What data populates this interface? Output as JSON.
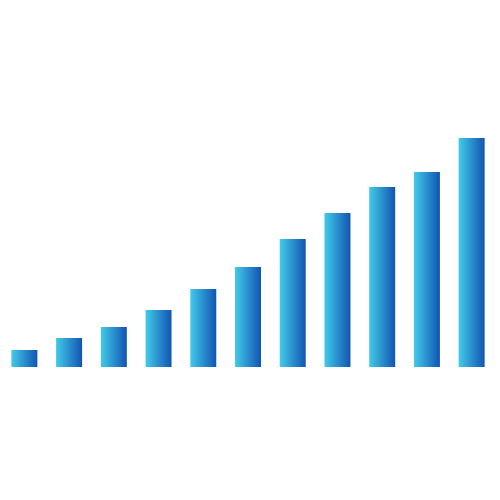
{
  "chart_data": {
    "type": "bar",
    "categories": [
      null,
      null,
      null,
      null,
      null,
      null,
      null,
      null,
      null,
      null,
      null
    ],
    "values": [
      17,
      29,
      40,
      57,
      78,
      100,
      128,
      154,
      180,
      195,
      229
    ],
    "gradient": [
      "#42cbe8",
      "#1254b2"
    ],
    "ylim": [
      0,
      250
    ]
  }
}
